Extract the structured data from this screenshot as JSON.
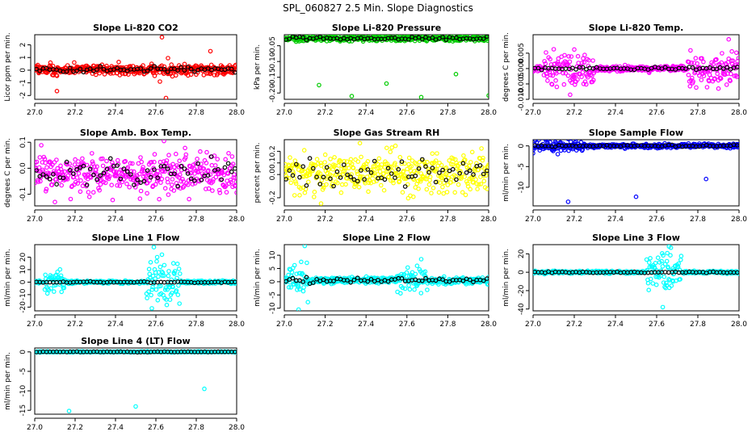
{
  "title": "SPL_060827  2.5 Min. Slope Diagnostics",
  "colors": {
    "red": "#ff0000",
    "green": "#00cc00",
    "magenta": "#ff00ff",
    "yellow": "#ffff00",
    "blue": "#0000ff",
    "cyan": "#00ffff",
    "black": "#000000"
  },
  "chart_data": [
    {
      "type": "scatter",
      "title": "Slope Li-820 CO2",
      "ylabel": "Licor ppm per min.",
      "color": "red",
      "xlim": [
        27.0,
        28.0
      ],
      "xticks": [
        "27.0",
        "27.2",
        "27.4",
        "27.6",
        "27.8",
        "28.0"
      ],
      "ylim": [
        -2.3,
        2.8
      ],
      "yticks": [
        {
          "v": -2,
          "t": "-2"
        },
        {
          "v": -1,
          "t": "-1"
        },
        {
          "v": 0,
          "t": "0"
        },
        {
          "v": 1,
          "t": "1"
        },
        {
          "v": 2,
          "t": "2"
        }
      ],
      "center": 0.05,
      "spread": 0.3,
      "black_spread": 0.15,
      "outliers": [
        [
          27.63,
          2.6
        ],
        [
          27.65,
          -2.2
        ],
        [
          27.11,
          -1.65
        ],
        [
          27.87,
          1.5
        ],
        [
          27.62,
          -0.9
        ],
        [
          27.66,
          0.95
        ]
      ]
    },
    {
      "type": "scatter",
      "title": "Slope Li-820 Pressure",
      "ylabel": "kPa per min.",
      "color": "green",
      "xlim": [
        27.0,
        28.0
      ],
      "xticks": [
        "27.0",
        "27.2",
        "27.4",
        "27.6",
        "27.8",
        "28.0"
      ],
      "ylim": [
        -0.22,
        -0.015
      ],
      "yticks": [
        {
          "v": -0.05,
          "t": "-0.05"
        },
        {
          "v": -0.1,
          "t": "-0.10"
        },
        {
          "v": -0.15,
          "t": "-0.15"
        },
        {
          "v": -0.2,
          "t": "-0.20"
        }
      ],
      "center": -0.027,
      "spread": 0.006,
      "black_spread": 0.004,
      "outliers": [
        [
          27.17,
          -0.175
        ],
        [
          27.33,
          -0.21
        ],
        [
          27.5,
          -0.17
        ],
        [
          27.67,
          -0.213
        ],
        [
          27.84,
          -0.14
        ],
        [
          28.0,
          -0.208
        ]
      ]
    },
    {
      "type": "scatter",
      "title": "Slope Li-820 Temp.",
      "ylabel": "degrees C per min.",
      "color": "magenta",
      "xlim": [
        27.0,
        28.0
      ],
      "xticks": [
        "27.0",
        "27.2",
        "27.4",
        "27.6",
        "27.8",
        "28.0"
      ],
      "ylim": [
        -0.01,
        0.011
      ],
      "yticks": [
        {
          "v": -0.01,
          "t": "-0.010"
        },
        {
          "v": -0.005,
          "t": "-0.005"
        },
        {
          "v": 0,
          "t": "0.000"
        },
        {
          "v": 0.005,
          "t": "0.005"
        }
      ],
      "center": 0.0,
      "spread": 0.0007,
      "black_spread": 0.0004,
      "noisy": [
        [
          27.05,
          27.3,
          0.004
        ],
        [
          27.75,
          28.0,
          0.004
        ]
      ],
      "outliers": [
        [
          27.95,
          0.0095
        ],
        [
          27.2,
          0.0062
        ],
        [
          27.18,
          -0.0085
        ],
        [
          27.9,
          -0.0065
        ]
      ]
    },
    {
      "type": "scatter",
      "title": "Slope Amb. Box Temp.",
      "ylabel": "degrees C per min.",
      "color": "magenta",
      "xlim": [
        27.0,
        28.0
      ],
      "xticks": [
        "27.0",
        "27.2",
        "27.4",
        "27.6",
        "27.8",
        "28.0"
      ],
      "ylim": [
        -0.145,
        0.11
      ],
      "yticks": [
        {
          "v": -0.1,
          "t": "-0.1"
        },
        {
          "v": 0,
          "t": "0.0"
        },
        {
          "v": 0.1,
          "t": "0.1"
        }
      ],
      "center": -0.02,
      "spread": 0.055,
      "black_spread": 0.03,
      "outliers": [
        [
          27.64,
          0.105
        ],
        [
          27.1,
          -0.13
        ]
      ]
    },
    {
      "type": "scatter",
      "title": "Slope Gas Stream RH",
      "ylabel": "percent per min.",
      "color": "yellow",
      "xlim": [
        27.0,
        28.0
      ],
      "xticks": [
        "27.0",
        "27.2",
        "27.4",
        "27.6",
        "27.8",
        "28.0"
      ],
      "ylim": [
        -0.27,
        0.3
      ],
      "yticks": [
        {
          "v": -0.2,
          "t": "-0.2"
        },
        {
          "v": 0,
          "t": "0.0"
        },
        {
          "v": 0.1,
          "t": "0.1"
        },
        {
          "v": 0.2,
          "t": "0.2"
        }
      ],
      "center": 0.02,
      "spread": 0.12,
      "black_spread": 0.08,
      "outliers": [
        [
          27.37,
          0.27
        ],
        [
          27.18,
          -0.25
        ]
      ]
    },
    {
      "type": "scatter",
      "title": "Slope Sample Flow",
      "ylabel": "ml/min per min.",
      "color": "blue",
      "xlim": [
        27.0,
        28.0
      ],
      "xticks": [
        "27.0",
        "27.2",
        "27.4",
        "27.6",
        "27.8",
        "28.0"
      ],
      "ylim": [
        -14.5,
        1.5
      ],
      "yticks": [
        {
          "v": 0,
          "t": "0"
        },
        {
          "v": -5,
          "t": "-5"
        },
        {
          "v": -10,
          "t": "-10"
        }
      ],
      "center": 0.0,
      "spread": 0.35,
      "black_spread": 0.15,
      "noisy": [
        [
          27.0,
          27.25,
          1.0
        ]
      ],
      "outliers": [
        [
          27.17,
          -13.5
        ],
        [
          27.5,
          -12.3
        ],
        [
          27.84,
          -8.0
        ],
        [
          27.12,
          -2.0
        ]
      ]
    },
    {
      "type": "scatter",
      "title": "Slope Line 1 Flow",
      "ylabel": "ml/min per min.",
      "color": "cyan",
      "xlim": [
        27.0,
        28.0
      ],
      "xticks": [
        "27.0",
        "27.2",
        "27.4",
        "27.6",
        "27.8",
        "28.0"
      ],
      "ylim": [
        -23,
        30
      ],
      "yticks": [
        {
          "v": -20,
          "t": "-20"
        },
        {
          "v": -10,
          "t": "-10"
        },
        {
          "v": 0,
          "t": "0"
        },
        {
          "v": 10,
          "t": "10"
        },
        {
          "v": 20,
          "t": "20"
        }
      ],
      "center": 0.0,
      "spread": 0.8,
      "black_spread": 0.3,
      "noisy": [
        [
          27.05,
          27.15,
          6
        ],
        [
          27.55,
          27.72,
          14
        ]
      ],
      "outliers": [
        [
          27.59,
          28
        ],
        [
          27.63,
          22
        ],
        [
          27.58,
          -21
        ],
        [
          27.67,
          -14
        ]
      ]
    },
    {
      "type": "scatter",
      "title": "Slope Line 2 Flow",
      "ylabel": "ml/min per min.",
      "color": "cyan",
      "xlim": [
        27.0,
        28.0
      ],
      "xticks": [
        "27.0",
        "27.2",
        "27.4",
        "27.6",
        "27.8",
        "28.0"
      ],
      "ylim": [
        -11,
        14
      ],
      "yticks": [
        {
          "v": -10,
          "t": "-10"
        },
        {
          "v": -5,
          "t": "-5"
        },
        {
          "v": 0,
          "t": "0"
        },
        {
          "v": 5,
          "t": "5"
        },
        {
          "v": 10,
          "t": "10"
        }
      ],
      "center": 0.5,
      "spread": 0.9,
      "black_spread": 0.6,
      "noisy": [
        [
          27.02,
          27.12,
          5
        ],
        [
          27.55,
          27.7,
          3
        ]
      ],
      "outliers": [
        [
          27.1,
          13.5
        ],
        [
          27.07,
          -10.5
        ],
        [
          27.67,
          8.5
        ],
        [
          27.65,
          6
        ]
      ]
    },
    {
      "type": "scatter",
      "title": "Slope Line 3 Flow",
      "ylabel": "ml/min per min.",
      "color": "cyan",
      "xlim": [
        27.0,
        28.0
      ],
      "xticks": [
        "27.0",
        "27.2",
        "27.4",
        "27.6",
        "27.8",
        "28.0"
      ],
      "ylim": [
        -42,
        30
      ],
      "yticks": [
        {
          "v": -40,
          "t": "-40"
        },
        {
          "v": -20,
          "t": "-20"
        },
        {
          "v": 0,
          "t": "0"
        },
        {
          "v": 20,
          "t": "20"
        }
      ],
      "center": 0.0,
      "spread": 1.0,
      "black_spread": 0.5,
      "noisy": [
        [
          27.55,
          27.72,
          14
        ]
      ],
      "outliers": [
        [
          27.66,
          28
        ],
        [
          27.63,
          -38
        ],
        [
          27.65,
          12
        ],
        [
          27.68,
          -10
        ]
      ]
    },
    {
      "type": "scatter",
      "title": "Slope Line 4 (LT) Flow",
      "ylabel": "ml/min per min.",
      "color": "cyan",
      "xlim": [
        27.0,
        28.0
      ],
      "xticks": [
        "27.0",
        "27.2",
        "27.4",
        "27.6",
        "27.8",
        "28.0"
      ],
      "ylim": [
        -16,
        1
      ],
      "yticks": [
        {
          "v": 0,
          "t": "0"
        },
        {
          "v": -5,
          "t": "-5"
        },
        {
          "v": -10,
          "t": "-10"
        },
        {
          "v": -15,
          "t": "-15"
        }
      ],
      "center": 0.0,
      "spread": 0.08,
      "black_spread": 0.05,
      "outliers": [
        [
          27.17,
          -15.2
        ],
        [
          27.5,
          -14.0
        ],
        [
          27.84,
          -9.5
        ]
      ]
    }
  ]
}
